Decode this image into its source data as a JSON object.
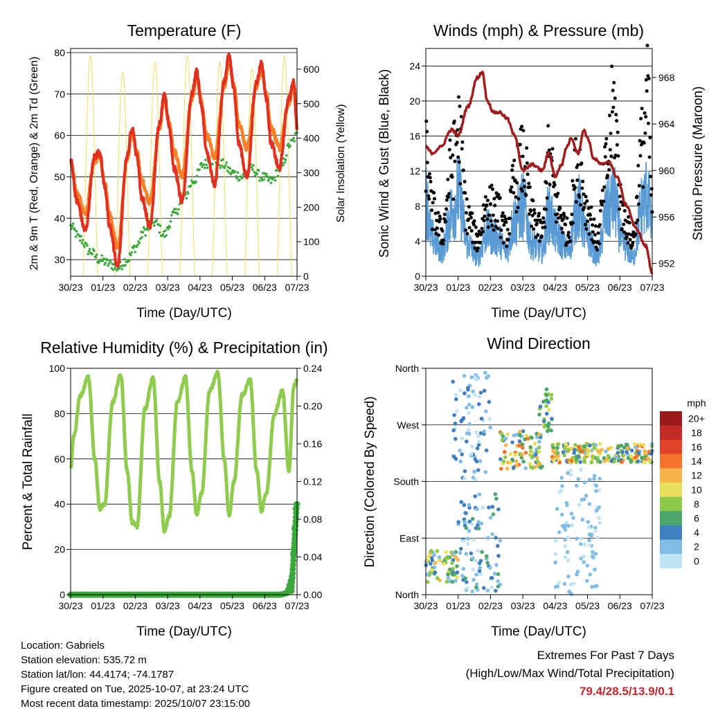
{
  "colors": {
    "temp2m": "#e03020",
    "temp9m": "#f5822a",
    "dewpoint": "#3aa83a",
    "solar": "#f2dc6a",
    "gust": "#000000",
    "wind": "#5b9bd5",
    "pressure": "#a11d1d",
    "rh": "#8fcb4f",
    "precip": "#3aa83a"
  },
  "xticks": [
    "30/23",
    "01/23",
    "02/23",
    "03/23",
    "04/23",
    "05/23",
    "06/23",
    "07/23"
  ],
  "panels": {
    "temperature": {
      "title": "Temperature (F)",
      "xlabel": "Time (Day/UTC)",
      "ylabel_left": "2m & 9m T (Red, Orange) & 2m Td (Green)",
      "ylabel_right": "Solar Insolation (Yellow)",
      "yticks_left": [
        "30",
        "40",
        "50",
        "60",
        "70",
        "80"
      ],
      "yticks_right": [
        "0",
        "100",
        "200",
        "300",
        "400",
        "500",
        "600"
      ]
    },
    "winds": {
      "title": "Winds (mph) & Pressure (mb)",
      "xlabel": "Time (Day/UTC)",
      "ylabel_left": "Sonic Wind & Gust (Blue, Black)",
      "ylabel_right": "Station Pressure (Maroon)",
      "yticks_left": [
        "0",
        "4",
        "8",
        "12",
        "16",
        "20",
        "24"
      ],
      "yticks_right": [
        "952",
        "956",
        "960",
        "964",
        "968"
      ]
    },
    "humidity": {
      "title": "Relative Humidity (%) & Precipitation (in)",
      "xlabel": "Time (Day/UTC)",
      "ylabel_left": "Percent & Total Rainfall",
      "yticks_left": [
        "0",
        "20",
        "40",
        "60",
        "80",
        "100"
      ],
      "yticks_right": [
        "0.00",
        "0.04",
        "0.08",
        "0.12",
        "0.16",
        "0.20",
        "0.24"
      ]
    },
    "direction": {
      "title": "Wind Direction",
      "xlabel": "Time (Day/UTC)",
      "ylabel_left": "Direction (Colored By Speed)",
      "yticks_left": [
        "North",
        "East",
        "South",
        "West",
        "North"
      ],
      "legend_title": "mph",
      "legend_labels": [
        "0",
        "2",
        "4",
        "6",
        "8",
        "10",
        "12",
        "14",
        "16",
        "18",
        "20+"
      ],
      "legend_colors": [
        "#bfe3f5",
        "#82bde6",
        "#3f7fc0",
        "#4aa66a",
        "#8cc84a",
        "#e8e05a",
        "#f7b548",
        "#f2742d",
        "#e0432a",
        "#c22a26",
        "#9b1a1a"
      ]
    }
  },
  "chart_data": [
    {
      "type": "line",
      "title": "Temperature (F)",
      "xlabel": "Time (Day/UTC)",
      "ylabel": "2m & 9m T (Red, Orange) & 2m Td (Green)",
      "ylabel_right": "Solar Insolation (Yellow)",
      "x_range_days": [
        0,
        7
      ],
      "ylim": [
        26,
        81
      ],
      "ylim_right": [
        0,
        660
      ],
      "daily_max_temp_2m": [
        56,
        62,
        70,
        75.5,
        79.4,
        77.4,
        73
      ],
      "daily_min_temp_2m": [
        37,
        28.5,
        38,
        44,
        47,
        50,
        52
      ],
      "dewpoint_range": [
        27,
        61
      ],
      "solar_daily_peak": [
        640,
        590,
        620,
        640,
        620,
        600,
        640
      ],
      "series": [
        {
          "name": "2m T",
          "x": [
            0,
            0.2,
            0.45,
            0.75,
            0.9,
            1.05,
            1.2,
            1.45,
            1.75,
            1.9,
            2.05,
            2.2,
            2.45,
            2.75,
            2.9,
            3.05,
            3.2,
            3.45,
            3.75,
            3.9,
            4.05,
            4.2,
            4.45,
            4.75,
            4.9,
            5.05,
            5.2,
            5.45,
            5.75,
            5.9,
            6.05,
            6.2,
            6.45,
            6.75,
            6.9,
            7.0
          ],
          "values": [
            54,
            44,
            37,
            55,
            56,
            48,
            38,
            28.5,
            55,
            62,
            55,
            45,
            38,
            63,
            70,
            62,
            52,
            44,
            70,
            75.5,
            67,
            56,
            48,
            73,
            79.4,
            71,
            58,
            50,
            73,
            77.4,
            69,
            58,
            52,
            69,
            73,
            62
          ]
        },
        {
          "name": "9m T",
          "x": [
            0,
            0.2,
            0.45,
            0.75,
            0.9,
            1.05,
            1.2,
            1.45,
            1.75,
            1.9,
            2.05,
            2.2,
            2.45,
            2.75,
            2.9,
            3.05,
            3.2,
            3.45,
            3.75,
            3.9,
            4.05,
            4.2,
            4.45,
            4.75,
            4.9,
            5.05,
            5.2,
            5.45,
            5.75,
            5.9,
            6.05,
            6.2,
            6.45,
            6.75,
            6.9,
            7.0
          ],
          "values": [
            54,
            46,
            41,
            54,
            55,
            49,
            41,
            33,
            54,
            61,
            56,
            49,
            44,
            62,
            69,
            63,
            56,
            50,
            69,
            74,
            68,
            60,
            55,
            72,
            78,
            72,
            63,
            57,
            72,
            76,
            70,
            62,
            57,
            68,
            72,
            62
          ]
        },
        {
          "name": "2m Td",
          "x": [
            0,
            0.3,
            0.6,
            0.9,
            1.2,
            1.45,
            1.75,
            2.0,
            2.3,
            2.6,
            2.9,
            3.2,
            3.5,
            3.8,
            4.1,
            4.4,
            4.7,
            5.0,
            5.3,
            5.6,
            5.9,
            6.2,
            6.5,
            6.8,
            7.0
          ],
          "values": [
            38,
            35,
            32,
            30,
            29,
            28,
            30,
            33,
            37,
            39,
            36,
            41,
            45,
            49,
            53,
            54,
            53,
            51,
            50,
            52,
            50,
            49,
            52,
            58,
            60
          ]
        }
      ]
    },
    {
      "type": "line",
      "title": "Winds (mph) & Pressure (mb)",
      "xlabel": "Time (Day/UTC)",
      "ylabel": "Sonic Wind & Gust (Blue, Black)",
      "ylabel_right": "Station Pressure (Maroon)",
      "x_range_days": [
        0,
        7
      ],
      "ylim": [
        0,
        26
      ],
      "ylim_right": [
        950.9,
        970.5
      ],
      "series": [
        {
          "name": "Sonic Wind",
          "x": [
            0,
            0.2,
            0.5,
            0.8,
            1.0,
            1.3,
            1.6,
            1.9,
            2.2,
            2.5,
            2.75,
            3.0,
            3.3,
            3.6,
            3.8,
            4.1,
            4.4,
            4.7,
            5.0,
            5.3,
            5.6,
            5.8,
            6.1,
            6.4,
            6.7,
            6.85,
            7.0
          ],
          "values": [
            12,
            6,
            4,
            10,
            13,
            5,
            3,
            7,
            6,
            4,
            9,
            11,
            5,
            4,
            10,
            6,
            4,
            11,
            6,
            3,
            10,
            12,
            5,
            3,
            11,
            13,
            7
          ]
        },
        {
          "name": "Gust",
          "x": [
            0,
            0.2,
            0.5,
            0.8,
            1.0,
            1.3,
            1.6,
            1.9,
            2.2,
            2.5,
            2.75,
            3.0,
            3.3,
            3.6,
            3.8,
            4.1,
            4.4,
            4.7,
            5.0,
            5.3,
            5.6,
            5.8,
            6.1,
            6.4,
            6.7,
            6.85,
            7.0
          ],
          "values": [
            17,
            9,
            6,
            15,
            20,
            8,
            5,
            10,
            9,
            6,
            13,
            16,
            8,
            6,
            16,
            9,
            6,
            16,
            9,
            5,
            15,
            23,
            8,
            5,
            18,
            24.3,
            10
          ]
        },
        {
          "name": "Station Pressure",
          "x": [
            0,
            0.2,
            0.45,
            0.8,
            1.0,
            1.3,
            1.6,
            1.75,
            1.9,
            2.1,
            2.3,
            2.5,
            2.75,
            3.0,
            3.3,
            3.6,
            3.8,
            4.0,
            4.2,
            4.35,
            4.5,
            4.7,
            4.9,
            5.0,
            5.2,
            5.45,
            5.65,
            5.9,
            6.2,
            6.5,
            6.8,
            7.0
          ],
          "values": [
            962,
            961.5,
            962,
            963.5,
            963,
            965.5,
            968,
            968.5,
            966,
            965,
            965,
            964.5,
            963,
            960,
            960.5,
            960,
            961.5,
            959.5,
            960.5,
            962,
            962.8,
            961.5,
            963.5,
            962.8,
            961,
            960.5,
            960.8,
            959.5,
            957,
            955,
            953.5,
            951.2
          ]
        }
      ]
    },
    {
      "type": "line",
      "title": "Relative Humidity (%) & Precipitation (in)",
      "xlabel": "Time (Day/UTC)",
      "ylabel": "Percent & Total Rainfall",
      "x_range_days": [
        0,
        7
      ],
      "ylim": [
        0,
        100
      ],
      "ylim_right": [
        0,
        0.24
      ],
      "series": [
        {
          "name": "Relative Humidity",
          "x": [
            0,
            0.1,
            0.3,
            0.55,
            0.75,
            0.9,
            1.05,
            1.3,
            1.55,
            1.75,
            1.9,
            2.05,
            2.3,
            2.55,
            2.75,
            2.9,
            3.05,
            3.3,
            3.55,
            3.75,
            3.9,
            4.05,
            4.3,
            4.55,
            4.75,
            4.9,
            5.05,
            5.3,
            5.55,
            5.75,
            5.9,
            6.05,
            6.3,
            6.55,
            6.75,
            6.9,
            7.0
          ],
          "values": [
            56,
            70,
            88,
            96,
            60,
            38,
            40,
            85,
            97,
            55,
            32,
            30,
            82,
            96,
            50,
            28,
            35,
            85,
            96,
            55,
            35,
            45,
            90,
            98,
            60,
            35,
            50,
            88,
            95,
            55,
            37,
            45,
            80,
            90,
            55,
            92,
            95
          ]
        },
        {
          "name": "Total Rainfall",
          "x": [
            0,
            6.5,
            6.7,
            6.85,
            6.95,
            7.0
          ],
          "values": [
            0,
            0,
            0.002,
            0.02,
            0.09,
            0.096
          ]
        }
      ]
    },
    {
      "type": "scatter",
      "title": "Wind Direction",
      "xlabel": "Time (Day/UTC)",
      "ylabel": "Direction (Colored By Speed)",
      "x_range_days": [
        0,
        7
      ],
      "y_categories": [
        "North",
        "East",
        "South",
        "West",
        "North"
      ],
      "ylim_degrees": [
        0,
        360
      ],
      "colorbar": {
        "title": "mph",
        "labels": [
          "0",
          "2",
          "4",
          "6",
          "8",
          "10",
          "12",
          "14",
          "16",
          "18",
          "20+"
        ]
      },
      "clusters": [
        {
          "x_range": [
            0,
            1.0
          ],
          "deg_range": [
            20,
            70
          ],
          "speed_range": [
            2,
            12
          ]
        },
        {
          "x_range": [
            1.0,
            2.3
          ],
          "deg_range": [
            5,
            160
          ],
          "speed_range": [
            0,
            6
          ]
        },
        {
          "x_range": [
            0.8,
            2.0
          ],
          "deg_range": [
            180,
            355
          ],
          "speed_range": [
            0,
            5
          ]
        },
        {
          "x_range": [
            2.3,
            3.6
          ],
          "deg_range": [
            200,
            260
          ],
          "speed_range": [
            2,
            14
          ]
        },
        {
          "x_range": [
            3.5,
            3.9
          ],
          "deg_range": [
            260,
            330
          ],
          "speed_range": [
            4,
            10
          ]
        },
        {
          "x_range": [
            3.9,
            7.0
          ],
          "deg_range": [
            210,
            240
          ],
          "speed_range": [
            2,
            14
          ]
        },
        {
          "x_range": [
            4.0,
            5.4
          ],
          "deg_range": [
            0,
            200
          ],
          "speed_range": [
            0,
            3
          ]
        }
      ]
    }
  ],
  "footer": {
    "location": "Location: Gabriels",
    "elevation": "Station elevation: 535.72 m",
    "latlon": "Station lat/lon: 44.4174; -74.1787",
    "created": "Figure created on Tue, 2025-10-07, at 23:24 UTC",
    "recent": "Most recent data timestamp: 2025/10/07 23:15:00"
  },
  "extremes": {
    "line1": "Extremes For Past 7 Days",
    "line2": "(High/Low/Max Wind/Total Precipitation)",
    "values": "79.4/28.5/13.9/0.1"
  }
}
